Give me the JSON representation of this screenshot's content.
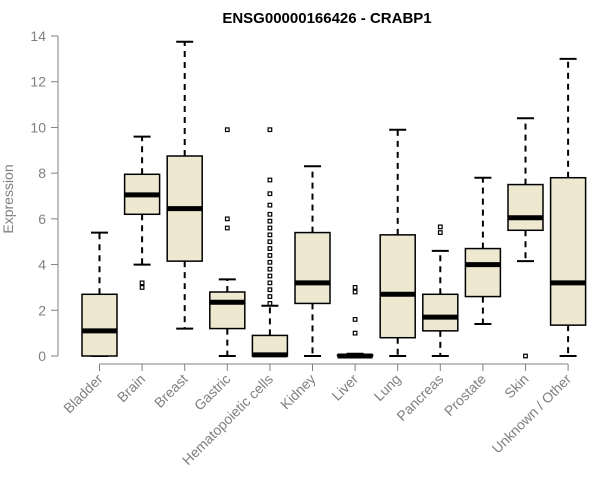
{
  "chart_data": {
    "type": "boxplot",
    "title": "ENSG00000166426 - CRABP1",
    "xlabel": "",
    "ylabel": "Expression",
    "ylim": [
      0,
      14
    ],
    "yticks": [
      "0",
      "2",
      "4",
      "6",
      "8",
      "10",
      "12",
      "14"
    ],
    "grid": false,
    "legend": "none",
    "colors": {
      "box_fill": "#efe8d0",
      "box_stroke": "#000000",
      "median": "#000000",
      "axis": "#808080",
      "tick_text": "#808080"
    },
    "categories": [
      "Bladder",
      "Brain",
      "Breast",
      "Gastric",
      "Hematopoietic cells",
      "Kidney",
      "Liver",
      "Lung",
      "Pancreas",
      "Prostate",
      "Skin",
      "Unknown / Other"
    ],
    "boxes": [
      {
        "category": "Bladder",
        "whisker_low": 0,
        "q1": 0,
        "median": 1.1,
        "q3": 2.7,
        "whisker_high": 5.4,
        "outliers": []
      },
      {
        "category": "Brain",
        "whisker_low": 4.0,
        "q1": 6.2,
        "median": 7.05,
        "q3": 7.95,
        "whisker_high": 9.6,
        "outliers": [
          3.0,
          3.2
        ]
      },
      {
        "category": "Breast",
        "whisker_low": 1.2,
        "q1": 4.15,
        "median": 6.45,
        "q3": 8.75,
        "whisker_high": 13.75,
        "outliers": []
      },
      {
        "category": "Gastric",
        "whisker_low": 0,
        "q1": 1.2,
        "median": 2.35,
        "q3": 2.8,
        "whisker_high": 3.35,
        "outliers": [
          5.6,
          6.0,
          9.9
        ]
      },
      {
        "category": "Hematopoietic cells",
        "whisker_low": 0,
        "q1": 0,
        "median": 0.05,
        "q3": 0.9,
        "whisker_high": 2.2,
        "outliers": [
          2.3,
          2.6,
          2.9,
          3.2,
          3.5,
          3.8,
          4.1,
          4.4,
          4.7,
          5.0,
          5.3,
          5.6,
          5.9,
          6.2,
          6.6,
          7.1,
          7.7,
          9.9
        ]
      },
      {
        "category": "Kidney",
        "whisker_low": 0,
        "q1": 2.3,
        "median": 3.2,
        "q3": 5.4,
        "whisker_high": 8.3,
        "outliers": []
      },
      {
        "category": "Liver",
        "whisker_low": 0,
        "q1": 0,
        "median": 0,
        "q3": 0.05,
        "whisker_high": 0.1,
        "outliers": [
          1.0,
          1.6,
          2.8,
          3.0
        ]
      },
      {
        "category": "Lung",
        "whisker_low": 0,
        "q1": 0.8,
        "median": 2.7,
        "q3": 5.3,
        "whisker_high": 9.9,
        "outliers": []
      },
      {
        "category": "Pancreas",
        "whisker_low": 0,
        "q1": 1.1,
        "median": 1.7,
        "q3": 2.7,
        "whisker_high": 4.6,
        "outliers": [
          5.4,
          5.65
        ]
      },
      {
        "category": "Prostate",
        "whisker_low": 1.4,
        "q1": 2.6,
        "median": 4.0,
        "q3": 4.7,
        "whisker_high": 7.8,
        "outliers": []
      },
      {
        "category": "Skin",
        "whisker_low": 4.15,
        "q1": 5.5,
        "median": 6.05,
        "q3": 7.5,
        "whisker_high": 10.4,
        "outliers": [
          0
        ]
      },
      {
        "category": "Unknown / Other",
        "whisker_low": 0,
        "q1": 1.35,
        "median": 3.2,
        "q3": 7.8,
        "whisker_high": 13.0,
        "outliers": []
      }
    ]
  }
}
